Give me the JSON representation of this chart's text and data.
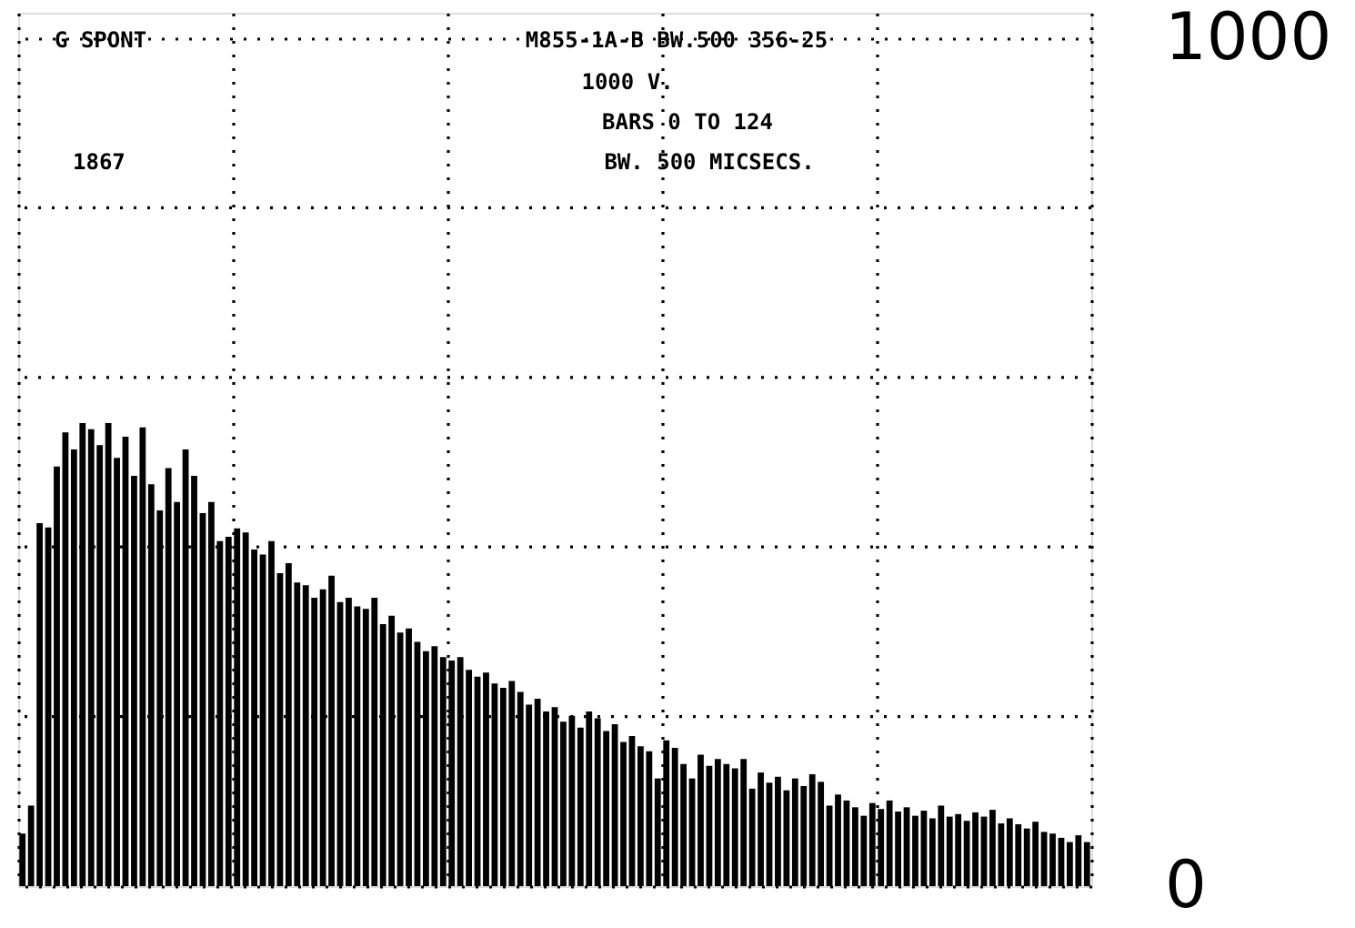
{
  "chart_data": {
    "type": "bar",
    "annotations": [
      "G SPONT",
      "M855-1A-B BW.500 356-25",
      "1000 V.",
      "BARS 0 TO 124",
      "BW. 500 MICSECS.",
      "1867"
    ],
    "categories": [
      null,
      null,
      null,
      null,
      null,
      null,
      null,
      null,
      null,
      null,
      null,
      null,
      null,
      null,
      null,
      null,
      null,
      null,
      null,
      null,
      null,
      null,
      null,
      null,
      null,
      null,
      null,
      null,
      null,
      null,
      null,
      null,
      null,
      null,
      null,
      null,
      null,
      null,
      null,
      null,
      null,
      null,
      null,
      null,
      null,
      null,
      null,
      null,
      null,
      null,
      null,
      null,
      null,
      null,
      null,
      null,
      null,
      null,
      null,
      null,
      null,
      null,
      null,
      null,
      null,
      null,
      null,
      null,
      null,
      null,
      null,
      null,
      null,
      null,
      null,
      null,
      null,
      null,
      null,
      null,
      null,
      null,
      null,
      null,
      null,
      null,
      null,
      null,
      null,
      null,
      null,
      null,
      null,
      null,
      null,
      null,
      null,
      null,
      null,
      null,
      null,
      null,
      null,
      null,
      null,
      null,
      null,
      null,
      null,
      null,
      null,
      null,
      null,
      null,
      null,
      null,
      null,
      null,
      null,
      null,
      null,
      null,
      null,
      null,
      null
    ],
    "values": [
      62,
      95,
      428,
      423,
      495,
      535,
      515,
      546,
      539,
      520,
      546,
      505,
      530,
      484,
      541,
      474,
      443,
      493,
      453,
      515,
      484,
      440,
      453,
      407,
      412,
      422,
      417,
      397,
      391,
      407,
      369,
      381,
      358,
      355,
      340,
      350,
      366,
      335,
      340,
      330,
      327,
      340,
      309,
      319,
      299,
      304,
      288,
      277,
      283,
      270,
      266,
      270,
      255,
      247,
      252,
      239,
      234,
      242,
      229,
      214,
      221,
      206,
      211,
      194,
      201,
      187,
      206,
      198,
      183,
      191,
      170,
      177,
      165,
      159,
      127,
      172,
      163,
      144,
      127,
      155,
      142,
      150,
      144,
      139,
      150,
      115,
      134,
      122,
      129,
      113,
      127,
      118,
      132,
      123,
      95,
      108,
      101,
      93,
      83,
      98,
      91,
      101,
      88,
      93,
      83,
      89,
      80,
      95,
      82,
      85,
      77,
      87,
      82,
      90,
      74,
      80,
      73,
      68,
      76,
      64,
      62,
      57,
      52,
      60,
      52
    ],
    "color": "#000000",
    "ylim": [
      0,
      1030
    ],
    "yticks": [
      0,
      {
        "value": 200,
        "label": null
      },
      {
        "value": 400,
        "label": null
      },
      {
        "value": 600,
        "label": null
      },
      {
        "value": 800,
        "label": null
      },
      1000
    ],
    "grid": true,
    "tick_labels": "y"
  }
}
